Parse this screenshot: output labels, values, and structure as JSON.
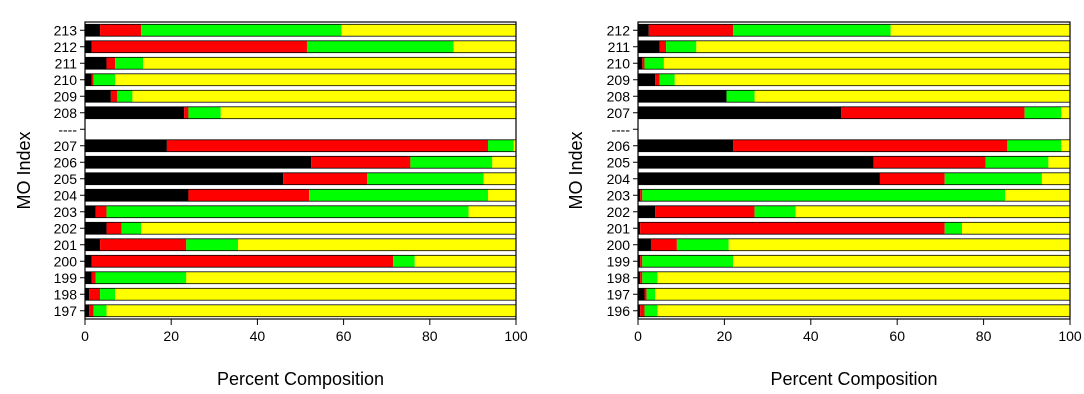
{
  "colors": {
    "black": "#000000",
    "red": "#ff0000",
    "green": "#00ff00",
    "yellow": "#ffff00",
    "frame": "#000000"
  },
  "chart_data": [
    {
      "type": "bar",
      "orientation": "horizontal",
      "stacked": true,
      "xlabel": "Percent Composition",
      "ylabel": "MO Index",
      "xlim": [
        0,
        100
      ],
      "xticks": [
        0,
        20,
        40,
        60,
        80,
        100
      ],
      "grid": false,
      "series_colors": [
        "black",
        "red",
        "green",
        "yellow"
      ],
      "categories": [
        "213",
        "212",
        "211",
        "210",
        "209",
        "208",
        "----",
        "207",
        "206",
        "205",
        "204",
        "203",
        "202",
        "201",
        "200",
        "199",
        "198",
        "197"
      ],
      "values": [
        [
          3.5,
          9.5,
          46.5,
          40.5
        ],
        [
          1.5,
          50.0,
          34.0,
          14.5
        ],
        [
          5.0,
          2.0,
          6.5,
          86.5
        ],
        [
          1.5,
          0.5,
          5.0,
          93.0
        ],
        [
          6.0,
          1.5,
          3.5,
          89.0
        ],
        [
          23.0,
          1.0,
          7.5,
          68.5
        ],
        null,
        [
          19.0,
          74.5,
          6.0,
          0.5
        ],
        [
          52.5,
          23.0,
          19.0,
          5.5
        ],
        [
          46.0,
          19.5,
          27.0,
          7.5
        ],
        [
          24.0,
          28.0,
          41.5,
          6.5
        ],
        [
          2.5,
          2.5,
          84.0,
          11.0
        ],
        [
          5.0,
          3.5,
          4.5,
          87.0
        ],
        [
          3.5,
          20.0,
          12.0,
          64.5
        ],
        [
          1.5,
          70.0,
          5.0,
          23.5
        ],
        [
          1.5,
          1.0,
          21.0,
          76.5
        ],
        [
          1.0,
          2.5,
          3.5,
          93.0
        ],
        [
          1.0,
          1.0,
          3.0,
          95.0
        ]
      ]
    },
    {
      "type": "bar",
      "orientation": "horizontal",
      "stacked": true,
      "xlabel": "Percent Composition",
      "ylabel": "MO Index",
      "xlim": [
        0,
        100
      ],
      "xticks": [
        0,
        20,
        40,
        60,
        80,
        100
      ],
      "grid": false,
      "series_colors": [
        "black",
        "red",
        "green",
        "yellow"
      ],
      "categories": [
        "212",
        "211",
        "210",
        "209",
        "208",
        "207",
        "----",
        "206",
        "205",
        "204",
        "203",
        "202",
        "201",
        "200",
        "199",
        "198",
        "197",
        "196"
      ],
      "values": [
        [
          2.5,
          19.5,
          36.5,
          41.5
        ],
        [
          5.0,
          1.5,
          7.0,
          86.5
        ],
        [
          1.0,
          0.5,
          4.5,
          94.0
        ],
        [
          4.0,
          1.0,
          3.5,
          91.5
        ],
        [
          20.5,
          0.0,
          6.5,
          73.0
        ],
        [
          47.0,
          42.5,
          8.5,
          2.0
        ],
        null,
        [
          22.0,
          63.5,
          12.5,
          2.0
        ],
        [
          54.5,
          26.0,
          14.5,
          5.0
        ],
        [
          56.0,
          15.0,
          22.5,
          6.5
        ],
        [
          0.5,
          0.5,
          84.0,
          15.0
        ],
        [
          4.0,
          23.0,
          9.5,
          63.5
        ],
        [
          0.5,
          70.5,
          4.0,
          25.0
        ],
        [
          3.0,
          6.0,
          12.0,
          79.0
        ],
        [
          0.5,
          0.5,
          21.0,
          78.0
        ],
        [
          0.5,
          0.5,
          3.5,
          95.5
        ],
        [
          1.5,
          0.5,
          2.0,
          96.0
        ],
        [
          0.5,
          1.0,
          3.0,
          95.5
        ]
      ]
    }
  ]
}
